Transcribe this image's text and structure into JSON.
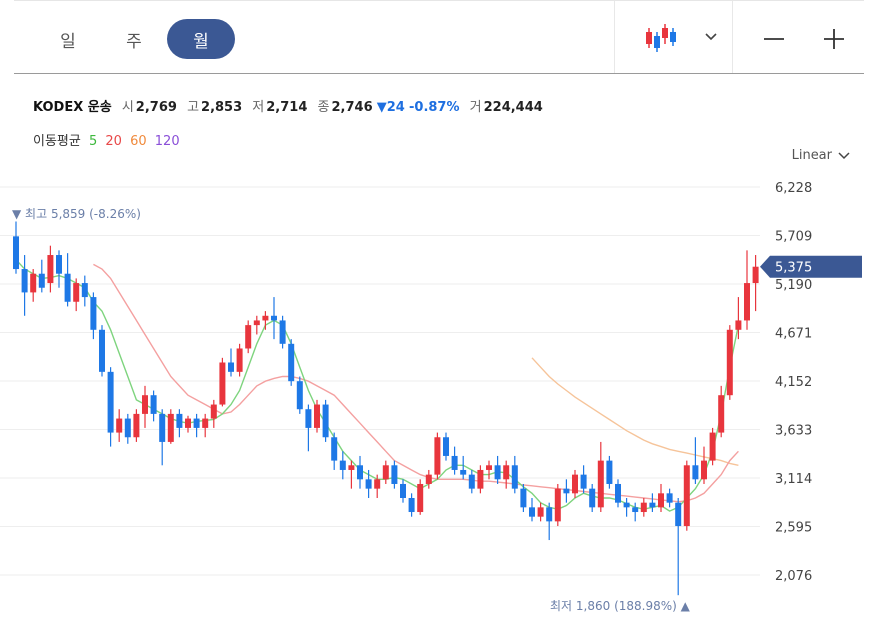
{
  "tabs": [
    {
      "label": "일",
      "active": false
    },
    {
      "label": "주",
      "active": false
    },
    {
      "label": "월",
      "active": true
    }
  ],
  "toolbar": {
    "chart_type_icon": "candlestick-icon",
    "dropdown_icon": "chevron-down-icon",
    "zoom_out_icon": "minus-icon",
    "zoom_in_icon": "plus-icon"
  },
  "quote": {
    "name": "KODEX 운송",
    "open_label": "시",
    "open": "2,769",
    "high_label": "고",
    "high": "2,853",
    "low_label": "저",
    "low": "2,714",
    "close_label": "종",
    "close": "2,746",
    "change": "24",
    "change_pct": "-0.87%",
    "volume_label": "거",
    "volume": "224,444"
  },
  "moving_average": {
    "label": "이동평균",
    "periods": [
      {
        "value": "5",
        "color": "#3db83d"
      },
      {
        "value": "20",
        "color": "#e84848"
      },
      {
        "value": "60",
        "color": "#f08a3c"
      },
      {
        "value": "120",
        "color": "#8a4fd8"
      }
    ]
  },
  "scale_mode": "Linear",
  "colors": {
    "up": "#e8353d",
    "down": "#1e78e6",
    "accent": "#3b5894",
    "ma5": "#7ed47e",
    "ma20": "#f4a0a0",
    "ma60": "#f6c49a"
  },
  "chart_data": {
    "type": "candlestick",
    "y_ticks": [
      "6,228",
      "5,709",
      "5,190",
      "4,671",
      "4,152",
      "3,633",
      "3,114",
      "2,595",
      "2,076"
    ],
    "ylim": [
      1860,
      6228
    ],
    "current_price_label": "5,375",
    "current_price": 5375,
    "high_marker": {
      "label": "최고",
      "value": "5,859",
      "pct": "(-8.26%)"
    },
    "low_marker": {
      "label": "최저",
      "value": "1,860",
      "pct": "(188.98%)"
    },
    "candles": [
      [
        5700,
        5859,
        5300,
        5350
      ],
      [
        5350,
        5500,
        4850,
        5100
      ],
      [
        5100,
        5350,
        5000,
        5300
      ],
      [
        5300,
        5450,
        5100,
        5150
      ],
      [
        5200,
        5600,
        5100,
        5500
      ],
      [
        5500,
        5550,
        5150,
        5300
      ],
      [
        5300,
        5520,
        4950,
        5000
      ],
      [
        5000,
        5250,
        4900,
        5200
      ],
      [
        5200,
        5280,
        4950,
        5050
      ],
      [
        5050,
        5100,
        4600,
        4700
      ],
      [
        4700,
        4750,
        4200,
        4250
      ],
      [
        4250,
        4300,
        3450,
        3600
      ],
      [
        3600,
        3850,
        3500,
        3750
      ],
      [
        3750,
        3800,
        3480,
        3550
      ],
      [
        3550,
        3850,
        3500,
        3800
      ],
      [
        3800,
        4100,
        3650,
        4000
      ],
      [
        4000,
        4050,
        3720,
        3800
      ],
      [
        3800,
        3850,
        3250,
        3500
      ],
      [
        3500,
        3850,
        3480,
        3800
      ],
      [
        3800,
        3850,
        3550,
        3650
      ],
      [
        3650,
        3780,
        3600,
        3750
      ],
      [
        3750,
        3800,
        3550,
        3650
      ],
      [
        3650,
        3800,
        3550,
        3750
      ],
      [
        3750,
        3950,
        3650,
        3900
      ],
      [
        3900,
        4400,
        3880,
        4350
      ],
      [
        4350,
        4500,
        4200,
        4250
      ],
      [
        4250,
        4550,
        4200,
        4500
      ],
      [
        4500,
        4800,
        4450,
        4750
      ],
      [
        4750,
        4850,
        4650,
        4800
      ],
      [
        4800,
        4900,
        4700,
        4850
      ],
      [
        4850,
        5050,
        4600,
        4800
      ],
      [
        4800,
        4850,
        4500,
        4550
      ],
      [
        4550,
        4600,
        4100,
        4150
      ],
      [
        4150,
        4200,
        3800,
        3850
      ],
      [
        3850,
        3900,
        3400,
        3650
      ],
      [
        3650,
        3950,
        3600,
        3900
      ],
      [
        3900,
        3950,
        3500,
        3550
      ],
      [
        3550,
        3600,
        3200,
        3300
      ],
      [
        3300,
        3400,
        3100,
        3200
      ],
      [
        3200,
        3300,
        3000,
        3250
      ],
      [
        3250,
        3350,
        3000,
        3100
      ],
      [
        3100,
        3200,
        2900,
        3000
      ],
      [
        3000,
        3150,
        2900,
        3100
      ],
      [
        3100,
        3300,
        3050,
        3250
      ],
      [
        3250,
        3300,
        3000,
        3050
      ],
      [
        3050,
        3100,
        2850,
        2900
      ],
      [
        2900,
        2950,
        2700,
        2750
      ],
      [
        2750,
        3100,
        2720,
        3050
      ],
      [
        3050,
        3200,
        3000,
        3150
      ],
      [
        3150,
        3600,
        3100,
        3550
      ],
      [
        3550,
        3600,
        3300,
        3350
      ],
      [
        3350,
        3450,
        3150,
        3200
      ],
      [
        3200,
        3350,
        3100,
        3150
      ],
      [
        3150,
        3200,
        2950,
        3000
      ],
      [
        3000,
        3250,
        2950,
        3200
      ],
      [
        3200,
        3300,
        3100,
        3250
      ],
      [
        3250,
        3350,
        3050,
        3100
      ],
      [
        3100,
        3300,
        3000,
        3250
      ],
      [
        3250,
        3350,
        2950,
        3000
      ],
      [
        3000,
        3050,
        2750,
        2800
      ],
      [
        2800,
        2900,
        2650,
        2700
      ],
      [
        2700,
        2850,
        2650,
        2800
      ],
      [
        2800,
        2850,
        2450,
        2650
      ],
      [
        2650,
        3050,
        2600,
        3000
      ],
      [
        3000,
        3100,
        2850,
        2950
      ],
      [
        2950,
        3200,
        2900,
        3150
      ],
      [
        3150,
        3250,
        2950,
        3000
      ],
      [
        3000,
        3050,
        2750,
        2800
      ],
      [
        2800,
        3500,
        2750,
        3300
      ],
      [
        3300,
        3350,
        3000,
        3050
      ],
      [
        3050,
        3100,
        2800,
        2850
      ],
      [
        2850,
        2900,
        2700,
        2800
      ],
      [
        2800,
        2850,
        2650,
        2750
      ],
      [
        2750,
        2900,
        2700,
        2850
      ],
      [
        2850,
        2950,
        2750,
        2800
      ],
      [
        2800,
        3050,
        2750,
        2950
      ],
      [
        2950,
        3000,
        2800,
        2850
      ],
      [
        2850,
        2900,
        1860,
        2600
      ],
      [
        2600,
        3300,
        2550,
        3250
      ],
      [
        3250,
        3550,
        3050,
        3100
      ],
      [
        3100,
        3450,
        3050,
        3300
      ],
      [
        3300,
        3650,
        3250,
        3600
      ],
      [
        3600,
        4100,
        3550,
        4000
      ],
      [
        4000,
        4750,
        3950,
        4700
      ],
      [
        4700,
        5050,
        4600,
        4800
      ],
      [
        4800,
        5550,
        4700,
        5200
      ],
      [
        5200,
        5500,
        4900,
        5375
      ]
    ],
    "ma5": [
      5450,
      5350,
      5300,
      5250,
      5260,
      5280,
      5250,
      5200,
      5150,
      5000,
      4900,
      4700,
      4450,
      4200,
      3950,
      3900,
      3850,
      3800,
      3750,
      3720,
      3700,
      3720,
      3730,
      3740,
      3800,
      3900,
      4050,
      4300,
      4550,
      4750,
      4800,
      4750,
      4550,
      4300,
      4050,
      3850,
      3700,
      3550,
      3400,
      3300,
      3200,
      3150,
      3100,
      3100,
      3120,
      3100,
      3050,
      3000,
      3050,
      3100,
      3200,
      3250,
      3250,
      3200,
      3150,
      3150,
      3180,
      3170,
      3100,
      3020,
      2950,
      2850,
      2800,
      2780,
      2820,
      2900,
      2950,
      2920,
      2900,
      2900,
      2880,
      2840,
      2800,
      2780,
      2800,
      2820,
      2760,
      2800,
      2900,
      3000,
      3150,
      3400,
      3800,
      4300,
      4750
    ],
    "ma20": [
      null,
      null,
      null,
      null,
      null,
      null,
      null,
      null,
      null,
      5400,
      5350,
      5250,
      5100,
      4950,
      4800,
      4650,
      4500,
      4350,
      4200,
      4100,
      4000,
      3950,
      3900,
      3850,
      3800,
      3820,
      3900,
      4000,
      4100,
      4150,
      4180,
      4200,
      4200,
      4180,
      4150,
      4100,
      4050,
      4000,
      3900,
      3800,
      3700,
      3600,
      3500,
      3400,
      3300,
      3250,
      3200,
      3150,
      3120,
      3100,
      3100,
      3100,
      3100,
      3090,
      3080,
      3080,
      3070,
      3060,
      3050,
      3040,
      3030,
      3020,
      3010,
      3000,
      2990,
      2980,
      2970,
      2960,
      2950,
      2940,
      2930,
      2920,
      2910,
      2900,
      2890,
      2880,
      2870,
      2860,
      2870,
      2900,
      2950,
      3050,
      3150,
      3300,
      3400
    ],
    "ma60": [
      null,
      null,
      null,
      null,
      null,
      null,
      null,
      null,
      null,
      null,
      null,
      null,
      null,
      null,
      null,
      null,
      null,
      null,
      null,
      null,
      null,
      null,
      null,
      null,
      null,
      null,
      null,
      null,
      null,
      null,
      null,
      null,
      null,
      null,
      null,
      null,
      null,
      null,
      null,
      null,
      null,
      null,
      null,
      null,
      null,
      null,
      null,
      null,
      null,
      null,
      null,
      null,
      null,
      null,
      null,
      null,
      null,
      null,
      null,
      null,
      4400,
      4300,
      4200,
      4120,
      4050,
      3980,
      3920,
      3860,
      3800,
      3740,
      3680,
      3620,
      3570,
      3520,
      3480,
      3450,
      3420,
      3400,
      3380,
      3360,
      3340,
      3320,
      3300,
      3270,
      3250
    ]
  }
}
